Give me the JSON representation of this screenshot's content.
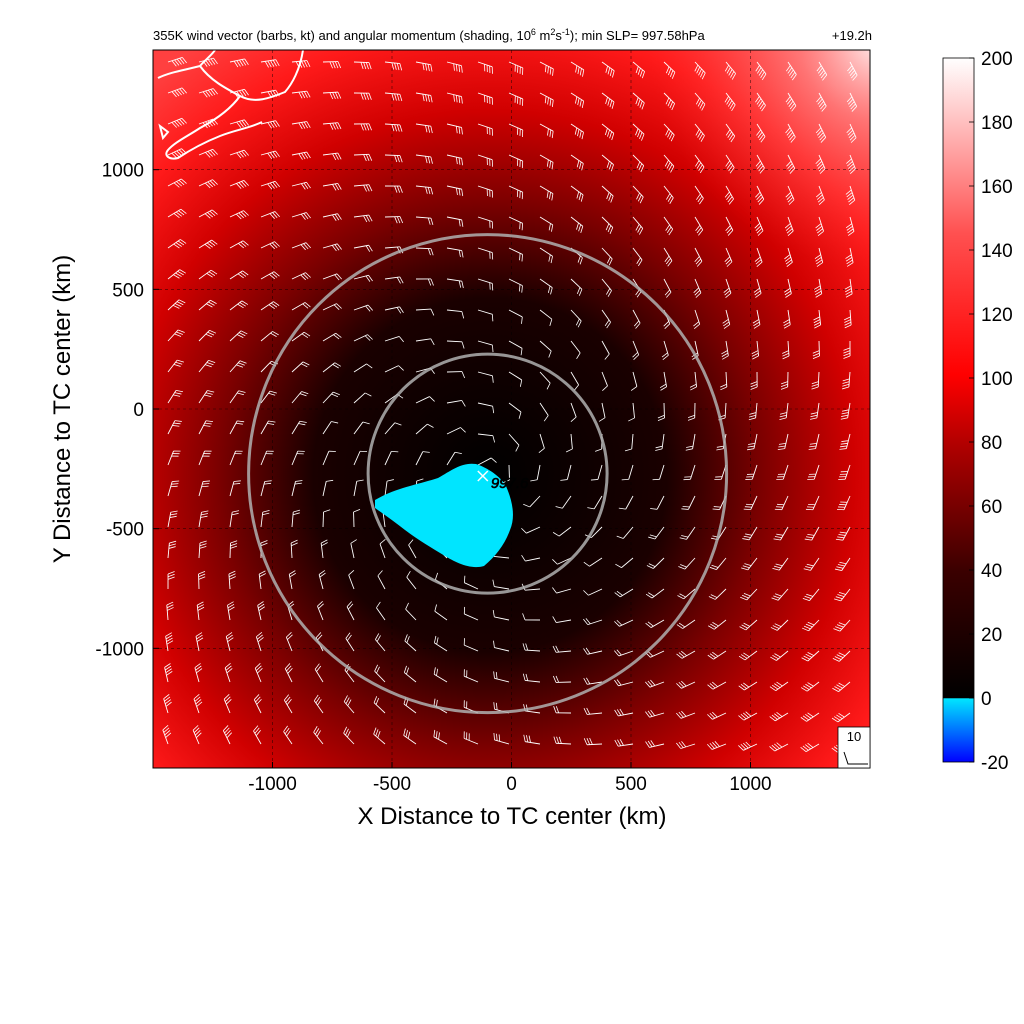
{
  "chart_data": {
    "type": "heatmap",
    "title": {
      "prefix": "355K wind vector (barbs, kt) and angular momentum (shading, 10",
      "exp1": "6",
      "mid": " m",
      "exp2": "2",
      "s": "s",
      "exp3": "-1",
      "suffix": "); min SLP= 997.58hPa",
      "time": "+19.2h"
    },
    "xlabel": "X Distance to TC center (km)",
    "ylabel": "Y Distance to TC center (km)",
    "xlim": [
      -1500,
      1500
    ],
    "ylim": [
      -1500,
      1500
    ],
    "x_ticks": [
      -1000,
      -500,
      0,
      500,
      1000
    ],
    "y_ticks": [
      -1000,
      -500,
      0,
      500,
      1000
    ],
    "x_tick_labels": [
      "-1000",
      "-500",
      "0",
      "500",
      "1000"
    ],
    "y_tick_labels": [
      "-1000",
      "-500",
      "0",
      "500",
      "1000"
    ],
    "grid": true,
    "colorbar": {
      "range": [
        -20,
        200
      ],
      "ticks": [
        -20,
        0,
        20,
        40,
        60,
        80,
        100,
        120,
        140,
        160,
        180,
        200
      ],
      "tick_labels": [
        "-20",
        "0",
        "20",
        "40",
        "60",
        "80",
        "100",
        "120",
        "140",
        "160",
        "180",
        "200"
      ],
      "colors": {
        "negative": "#0000ff",
        "zero": "#00e5ff",
        "low": "#000000",
        "mid": "#ff0000",
        "high": "#ffffff"
      }
    },
    "circles": [
      {
        "center": [
          -100,
          -270
        ],
        "radius_km": 500,
        "color": "#b0b0b0"
      },
      {
        "center": [
          -100,
          -270
        ],
        "radius_km": 1000,
        "color": "#b0b0b0"
      }
    ],
    "min_slp_marker": {
      "x": -120,
      "y": -280,
      "label": "997.6"
    },
    "reference_barb": {
      "label": "10",
      "position": "bottom-right"
    },
    "coastline_color": "#ffffff",
    "barb_color": "#ffffff",
    "negative_region_color": "#00e5ff"
  }
}
